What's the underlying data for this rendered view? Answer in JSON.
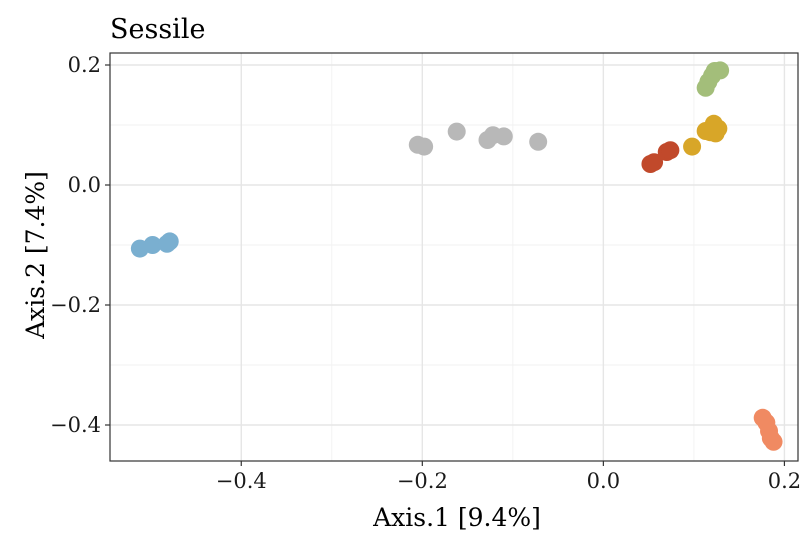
{
  "chart_data": {
    "type": "scatter",
    "title": "Sessile",
    "xlabel": "Axis.1   [9.4%]",
    "ylabel": "Axis.2   [7.4%]",
    "xlim": [
      -0.545,
      0.215
    ],
    "ylim": [
      -0.46,
      0.22
    ],
    "x_ticks": [
      -0.4,
      -0.2,
      0.0,
      0.2
    ],
    "x_tick_labels": [
      "−0.4",
      "−0.2",
      "0.0",
      "0.2"
    ],
    "y_ticks": [
      0.2,
      0.0,
      -0.2,
      -0.4
    ],
    "y_tick_labels": [
      "0.2",
      "0.0",
      "−0.2",
      "−0.4"
    ],
    "grid": true,
    "legend": "none",
    "colors": {
      "blue": "#7aafd0",
      "gray": "#b8b8b8",
      "red": "#c1492b",
      "yellow": "#d8a628",
      "green": "#a3be7a",
      "orange": "#f08a62"
    },
    "groups": [
      {
        "color": "#7aafd0",
        "points": [
          [
            -0.512,
            -0.106
          ],
          [
            -0.498,
            -0.1
          ],
          [
            -0.482,
            -0.098
          ],
          [
            -0.479,
            -0.094
          ]
        ]
      },
      {
        "color": "#b8b8b8",
        "points": [
          [
            -0.205,
            0.067
          ],
          [
            -0.198,
            0.064
          ],
          [
            -0.162,
            0.089
          ],
          [
            -0.128,
            0.075
          ],
          [
            -0.122,
            0.083
          ],
          [
            -0.11,
            0.081
          ],
          [
            -0.072,
            0.072
          ]
        ]
      },
      {
        "color": "#c1492b",
        "points": [
          [
            0.052,
            0.035
          ],
          [
            0.056,
            0.038
          ],
          [
            0.07,
            0.055
          ],
          [
            0.074,
            0.058
          ]
        ]
      },
      {
        "color": "#d8a628",
        "points": [
          [
            0.098,
            0.064
          ],
          [
            0.113,
            0.09
          ],
          [
            0.118,
            0.088
          ],
          [
            0.122,
            0.102
          ],
          [
            0.124,
            0.086
          ],
          [
            0.127,
            0.094
          ]
        ]
      },
      {
        "color": "#a3be7a",
        "points": [
          [
            0.113,
            0.162
          ],
          [
            0.116,
            0.172
          ],
          [
            0.12,
            0.182
          ],
          [
            0.123,
            0.19
          ],
          [
            0.129,
            0.191
          ]
        ]
      },
      {
        "color": "#f08a62",
        "points": [
          [
            0.176,
            -0.388
          ],
          [
            0.18,
            -0.396
          ],
          [
            0.183,
            -0.41
          ],
          [
            0.185,
            -0.422
          ],
          [
            0.188,
            -0.428
          ]
        ]
      }
    ]
  }
}
